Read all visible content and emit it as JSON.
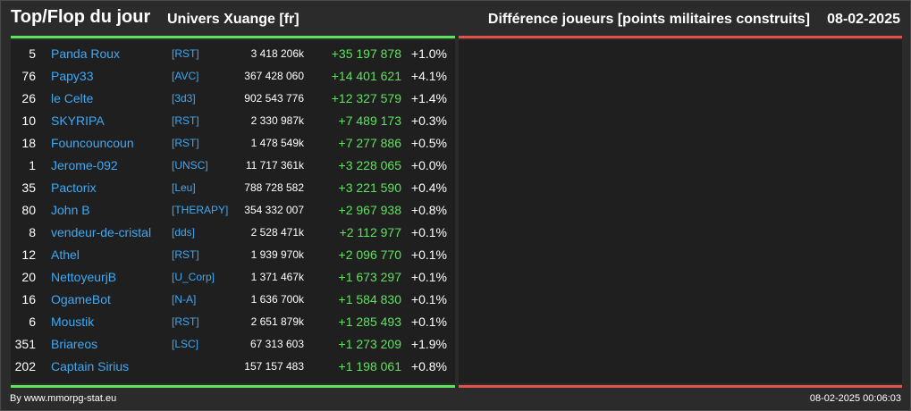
{
  "header": {
    "title": "Top/Flop du jour",
    "universe": "Univers Xuange [fr]",
    "metric": "Différence joueurs [points militaires construits]",
    "date": "08-02-2025"
  },
  "colors": {
    "top_accent": "#5ee35e",
    "flop_accent": "#e0524a",
    "player_link": "#3fa9f5"
  },
  "top": [
    {
      "rank": "5",
      "name": "Panda Roux",
      "alliance": "[RST]",
      "points": "3 418 206k",
      "diff": "+35 197 878",
      "pct": "+1.0%"
    },
    {
      "rank": "76",
      "name": "Papy33",
      "alliance": "[AVC]",
      "points": "367 428 060",
      "diff": "+14 401 621",
      "pct": "+4.1%"
    },
    {
      "rank": "26",
      "name": "le Celte",
      "alliance": "[3d3]",
      "points": "902 543 776",
      "diff": "+12 327 579",
      "pct": "+1.4%"
    },
    {
      "rank": "10",
      "name": "SKYRIPA",
      "alliance": "[RST]",
      "points": "2 330 987k",
      "diff": "+7 489 173",
      "pct": "+0.3%"
    },
    {
      "rank": "18",
      "name": "Founcouncoun",
      "alliance": "[RST]",
      "points": "1 478 549k",
      "diff": "+7 277 886",
      "pct": "+0.5%"
    },
    {
      "rank": "1",
      "name": "Jerome-092",
      "alliance": "[UNSC]",
      "points": "11 717 361k",
      "diff": "+3 228 065",
      "pct": "+0.0%"
    },
    {
      "rank": "35",
      "name": "Pactorix",
      "alliance": "[Leu]",
      "points": "788 728 582",
      "diff": "+3 221 590",
      "pct": "+0.4%"
    },
    {
      "rank": "80",
      "name": "John B",
      "alliance": "[THERAPY]",
      "points": "354 332 007",
      "diff": "+2 967 938",
      "pct": "+0.8%"
    },
    {
      "rank": "8",
      "name": "vendeur-de-cristal",
      "alliance": "[dds]",
      "points": "2 528 471k",
      "diff": "+2 112 977",
      "pct": "+0.1%"
    },
    {
      "rank": "12",
      "name": "Athel",
      "alliance": "[RST]",
      "points": "1 939 970k",
      "diff": "+2 096 770",
      "pct": "+0.1%"
    },
    {
      "rank": "20",
      "name": "NettoyeurjB",
      "alliance": "[U_Corp]",
      "points": "1 371 467k",
      "diff": "+1 673 297",
      "pct": "+0.1%"
    },
    {
      "rank": "16",
      "name": "OgameBot",
      "alliance": "[N-A]",
      "points": "1 636 700k",
      "diff": "+1 584 830",
      "pct": "+0.1%"
    },
    {
      "rank": "6",
      "name": "Moustik",
      "alliance": "[RST]",
      "points": "2 651 879k",
      "diff": "+1 285 493",
      "pct": "+0.1%"
    },
    {
      "rank": "351",
      "name": "Briareos",
      "alliance": "[LSC]",
      "points": "67 313 603",
      "diff": "+1 273 209",
      "pct": "+1.9%"
    },
    {
      "rank": "202",
      "name": "Captain Sirius",
      "alliance": "",
      "points": "157 157 483",
      "diff": "+1 198 061",
      "pct": "+0.8%"
    }
  ],
  "flop": [],
  "footer": {
    "credit": "By www.mmorpg-stat.eu",
    "timestamp": "08-02-2025 00:06:03"
  }
}
